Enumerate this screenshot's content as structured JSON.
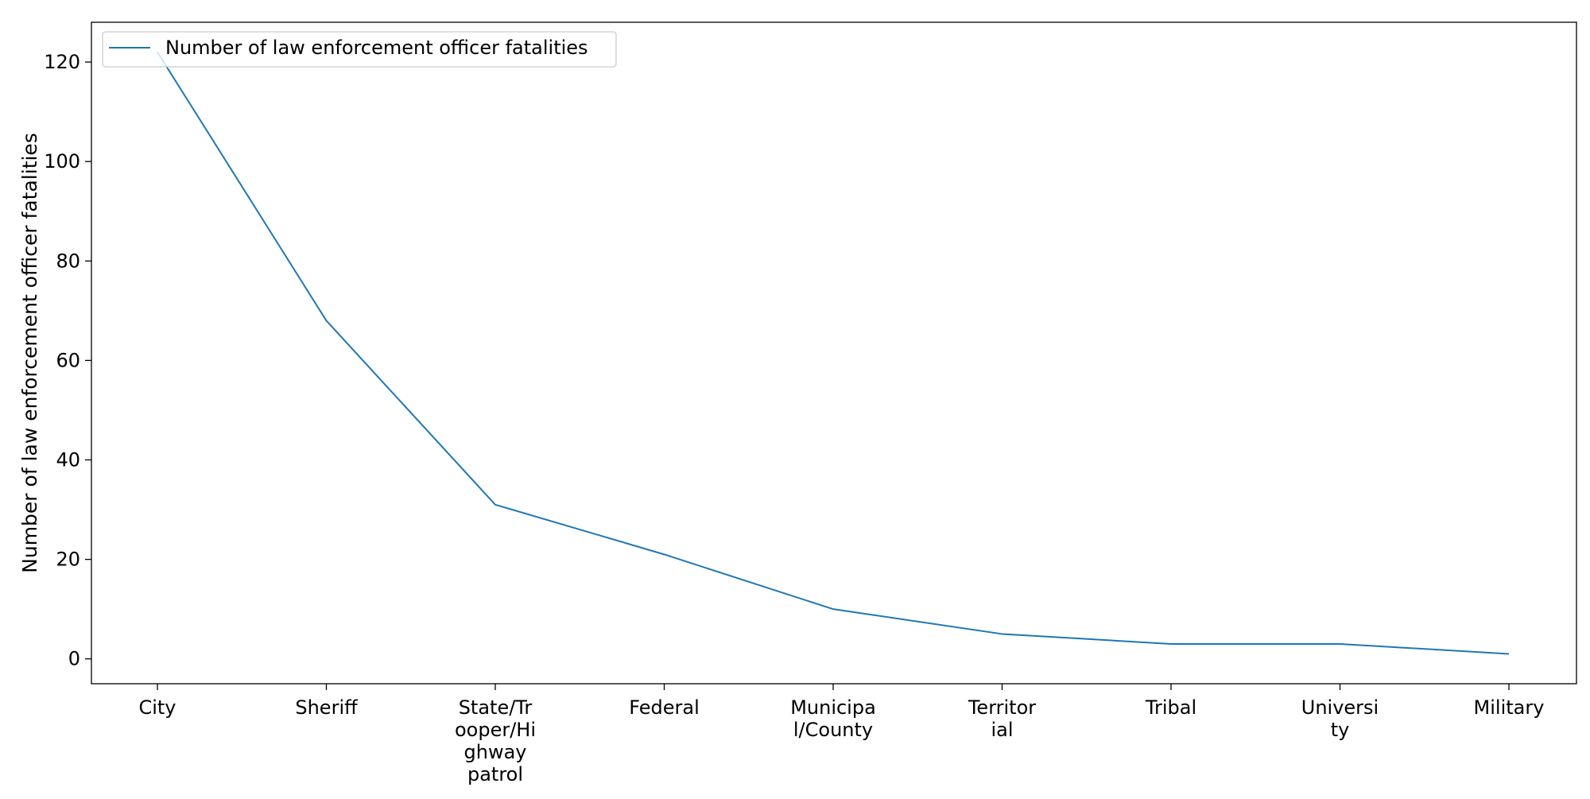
{
  "chart_data": {
    "type": "line",
    "title": "",
    "xlabel": "",
    "ylabel": "Number of law enforcement officer fatalities",
    "categories": [
      [
        "City"
      ],
      [
        "Sheriff"
      ],
      [
        "State/Tr",
        "ooper/Hi",
        "ghway",
        "patrol"
      ],
      [
        "Federal"
      ],
      [
        "Municipa",
        "l/County"
      ],
      [
        "Territor",
        "ial"
      ],
      [
        "Tribal"
      ],
      [
        "Universi",
        "ty"
      ],
      [
        "Military"
      ]
    ],
    "series": [
      {
        "name": "Number of law enforcement officer fatalities",
        "color": "#1f77b4",
        "values": [
          122,
          68,
          31,
          21,
          10,
          5,
          3,
          3,
          1
        ]
      }
    ],
    "ylim": [
      -5,
      128
    ],
    "yticks": [
      0,
      20,
      40,
      60,
      80,
      100,
      120
    ],
    "grid": false,
    "legend_position": "upper-left"
  }
}
